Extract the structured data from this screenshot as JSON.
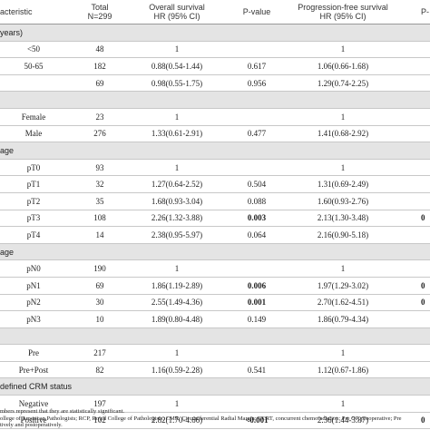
{
  "table": {
    "header": [
      [
        "acteristic"
      ],
      [
        "Total",
        "N=299"
      ],
      [
        "Overall survival",
        "HR (95% CI)"
      ],
      [
        "P-value"
      ],
      [
        "Progression-free survival",
        "HR (95% CI)"
      ],
      [
        "P-"
      ]
    ],
    "sections": [
      {
        "title": "years)",
        "rows": [
          {
            "cells": [
              "<50",
              "48",
              "1",
              null,
              "1",
              null
            ]
          },
          {
            "cells": [
              "50-65",
              "182",
              "0.88(0.54-1.44)",
              "0.617",
              "1.06(0.66-1.68)",
              null
            ]
          },
          {
            "cells": [
              null,
              "69",
              "0.98(0.55-1.75)",
              "0.956",
              "1.29(0.74-2.25)",
              null
            ]
          }
        ]
      },
      {
        "title": null,
        "rows": [
          {
            "cells": [
              "Female",
              "23",
              "1",
              null,
              "1",
              null
            ]
          },
          {
            "cells": [
              "Male",
              "276",
              "1.33(0.61-2.91)",
              "0.477",
              "1.41(0.68-2.92)",
              null
            ]
          }
        ]
      },
      {
        "title": "age",
        "rows": [
          {
            "cells": [
              "pT0",
              "93",
              "1",
              null,
              "1",
              null
            ]
          },
          {
            "cells": [
              "pT1",
              "32",
              "1.27(0.64-2.52)",
              "0.504",
              "1.31(0.69-2.49)",
              null
            ]
          },
          {
            "cells": [
              "pT2",
              "35",
              "1.68(0.93-3.04)",
              "0.088",
              "1.60(0.93-2.76)",
              null
            ]
          },
          {
            "cells": [
              "pT3",
              "108",
              "2.26(1.32-3.88)",
              "0.003",
              "2.13(1.30-3.48)",
              "0"
            ],
            "bold": [
              3,
              5
            ]
          },
          {
            "cells": [
              "pT4",
              "14",
              "2.38(0.95-5.97)",
              "0.064",
              "2.16(0.90-5.18)",
              null
            ]
          }
        ]
      },
      {
        "title": "age",
        "rows": [
          {
            "cells": [
              "pN0",
              "190",
              "1",
              null,
              "1",
              null
            ]
          },
          {
            "cells": [
              "pN1",
              "69",
              "1.86(1.19-2.89)",
              "0.006",
              "1.97(1.29-3.02)",
              "0"
            ],
            "bold": [
              3,
              5
            ]
          },
          {
            "cells": [
              "pN2",
              "30",
              "2.55(1.49-4.36)",
              "0.001",
              "2.70(1.62-4.51)",
              "0"
            ],
            "bold": [
              3,
              5
            ]
          },
          {
            "cells": [
              "pN3",
              "10",
              "1.89(0.80-4.48)",
              "0.149",
              "1.86(0.79-4.34)",
              null
            ]
          }
        ]
      },
      {
        "title": null,
        "rows": [
          {
            "cells": [
              "Pre",
              "217",
              "1",
              null,
              "1",
              null
            ]
          },
          {
            "cells": [
              "Pre+Post",
              "82",
              "1.16(0.59-2.28)",
              "0.541",
              "1.12(0.67-1.86)",
              null
            ]
          }
        ]
      },
      {
        "title": "defined CRM status",
        "rows": [
          {
            "cells": [
              "Negative",
              "197",
              "1",
              null,
              "1",
              null
            ]
          },
          {
            "cells": [
              "Positive",
              "102",
              "2.82(1.70-4.66)",
              "<0.001",
              "2.36(1.44-3.87)",
              "0"
            ],
            "bold": [
              3,
              5
            ]
          }
        ]
      }
    ],
    "footnotes": [
      "mbers represent that they are statistically significant.",
      "ollege of American Pathologists; RCP, Royal College of Pathologists; CMR, Circumferential Radial Margin; CCRT, concurrent chemoradiation; Pre OP, preoperative; Pre",
      "tively and postoperatively."
    ]
  }
}
